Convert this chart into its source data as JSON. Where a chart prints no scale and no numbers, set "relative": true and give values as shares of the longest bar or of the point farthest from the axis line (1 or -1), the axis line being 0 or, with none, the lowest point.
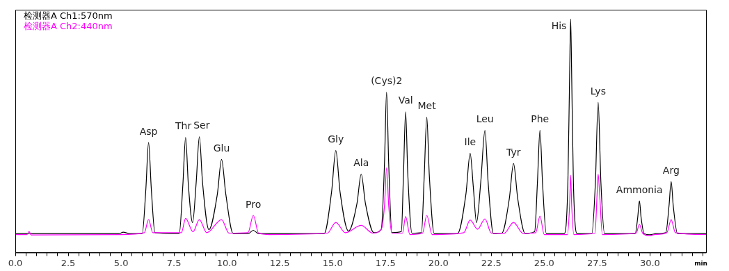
{
  "chart_data": {
    "type": "line",
    "relative": true,
    "xlabel": "min",
    "legend": "top left",
    "grid": false,
    "marker": "none",
    "line_style": "solid",
    "xlim": [
      0,
      32.65
    ],
    "xticks": [
      {
        "value": 0,
        "label": "0.0"
      },
      {
        "value": 0.5,
        "label": null
      },
      {
        "value": 1,
        "label": null
      },
      {
        "value": 1.5,
        "label": null
      },
      {
        "value": 2,
        "label": null
      },
      {
        "value": 2.5,
        "label": "2.5"
      },
      {
        "value": 3,
        "label": null
      },
      {
        "value": 3.5,
        "label": null
      },
      {
        "value": 4,
        "label": null
      },
      {
        "value": 4.5,
        "label": null
      },
      {
        "value": 5,
        "label": "5.0"
      },
      {
        "value": 5.5,
        "label": null
      },
      {
        "value": 6,
        "label": null
      },
      {
        "value": 6.5,
        "label": null
      },
      {
        "value": 7,
        "label": null
      },
      {
        "value": 7.5,
        "label": "7.5"
      },
      {
        "value": 8,
        "label": null
      },
      {
        "value": 8.5,
        "label": null
      },
      {
        "value": 9,
        "label": null
      },
      {
        "value": 9.5,
        "label": null
      },
      {
        "value": 10,
        "label": "10.0"
      },
      {
        "value": 10.5,
        "label": null
      },
      {
        "value": 11,
        "label": null
      },
      {
        "value": 11.5,
        "label": null
      },
      {
        "value": 12,
        "label": null
      },
      {
        "value": 12.5,
        "label": "12.5"
      },
      {
        "value": 13,
        "label": null
      },
      {
        "value": 13.5,
        "label": null
      },
      {
        "value": 14,
        "label": null
      },
      {
        "value": 14.5,
        "label": null
      },
      {
        "value": 15,
        "label": "15.0"
      },
      {
        "value": 15.5,
        "label": null
      },
      {
        "value": 16,
        "label": null
      },
      {
        "value": 16.5,
        "label": null
      },
      {
        "value": 17,
        "label": null
      },
      {
        "value": 17.5,
        "label": "17.5"
      },
      {
        "value": 18,
        "label": null
      },
      {
        "value": 18.5,
        "label": null
      },
      {
        "value": 19,
        "label": null
      },
      {
        "value": 19.5,
        "label": null
      },
      {
        "value": 20,
        "label": "20.0"
      },
      {
        "value": 20.5,
        "label": null
      },
      {
        "value": 21,
        "label": null
      },
      {
        "value": 21.5,
        "label": null
      },
      {
        "value": 22,
        "label": null
      },
      {
        "value": 22.5,
        "label": "22.5"
      },
      {
        "value": 23,
        "label": null
      },
      {
        "value": 23.5,
        "label": null
      },
      {
        "value": 24,
        "label": null
      },
      {
        "value": 24.5,
        "label": null
      },
      {
        "value": 25,
        "label": "25.0"
      },
      {
        "value": 25.5,
        "label": null
      },
      {
        "value": 26,
        "label": null
      },
      {
        "value": 26.5,
        "label": null
      },
      {
        "value": 27,
        "label": null
      },
      {
        "value": 27.5,
        "label": "27.5"
      },
      {
        "value": 28,
        "label": null
      },
      {
        "value": 28.5,
        "label": null
      },
      {
        "value": 29,
        "label": null
      },
      {
        "value": 29.5,
        "label": null
      },
      {
        "value": 30,
        "label": "30.0"
      },
      {
        "value": 30.5,
        "label": null
      },
      {
        "value": 31,
        "label": null
      },
      {
        "value": 31.5,
        "label": null
      },
      {
        "value": 32,
        "label": null
      },
      {
        "value": 32.5,
        "label": null
      }
    ],
    "series": [
      {
        "name": "检测器A Ch1:570nm",
        "color": "#000000",
        "x": [
          0,
          0.6,
          0.65,
          0.75,
          4.9,
          5.1,
          5.4,
          6.0,
          6.17,
          6.3,
          6.43,
          6.6,
          7.75,
          7.92,
          8.05,
          8.18,
          8.38,
          8.55,
          8.7,
          8.85,
          9.15,
          9.55,
          9.75,
          9.95,
          10.3,
          11.0,
          11.25,
          11.5,
          14.6,
          14.95,
          15.15,
          15.35,
          15.75,
          16.15,
          16.35,
          16.55,
          16.95,
          17.3,
          17.45,
          17.55,
          17.65,
          17.8,
          18.25,
          18.35,
          18.45,
          18.55,
          18.75,
          19.2,
          19.33,
          19.45,
          19.57,
          19.8,
          20.9,
          21.3,
          21.5,
          21.65,
          21.8,
          22.0,
          22.2,
          22.35,
          22.6,
          23.0,
          23.35,
          23.55,
          23.75,
          24.1,
          24.55,
          24.68,
          24.8,
          24.92,
          25.1,
          25.95,
          26.12,
          26.2,
          26.25,
          26.3,
          26.38,
          26.55,
          27.25,
          27.42,
          27.55,
          27.68,
          27.85,
          29.3,
          29.42,
          29.5,
          29.58,
          29.72,
          30.0,
          30.3,
          30.75,
          30.9,
          31.0,
          31.1,
          31.3,
          32.65
        ],
        "values": [
          0.081,
          0.081,
          0.083,
          0.081,
          0.081,
          0.087,
          0.081,
          0.081,
          0.27,
          0.471,
          0.27,
          0.085,
          0.081,
          0.29,
          0.493,
          0.29,
          0.128,
          0.3,
          0.496,
          0.3,
          0.098,
          0.25,
          0.399,
          0.25,
          0.081,
          0.081,
          0.095,
          0.081,
          0.081,
          0.26,
          0.437,
          0.26,
          0.092,
          0.21,
          0.336,
          0.21,
          0.085,
          0.1,
          0.38,
          0.688,
          0.38,
          0.085,
          0.09,
          0.34,
          0.603,
          0.34,
          0.083,
          0.085,
          0.33,
          0.58,
          0.33,
          0.081,
          0.081,
          0.25,
          0.425,
          0.28,
          0.128,
          0.3,
          0.523,
          0.3,
          0.081,
          0.083,
          0.23,
          0.381,
          0.23,
          0.081,
          0.09,
          0.3,
          0.524,
          0.3,
          0.081,
          0.081,
          0.3,
          0.75,
          1.0,
          0.75,
          0.3,
          0.081,
          0.081,
          0.3,
          0.644,
          0.3,
          0.081,
          0.081,
          0.15,
          0.221,
          0.15,
          0.081,
          0.076,
          0.081,
          0.085,
          0.2,
          0.304,
          0.2,
          0.081,
          0.081
        ]
      },
      {
        "name": "检测器A Ch2:440nm",
        "color": "#ff00ff",
        "x": [
          0,
          0.55,
          0.65,
          0.75,
          5.0,
          6.1,
          6.3,
          6.5,
          7.85,
          8.05,
          8.4,
          8.7,
          9.05,
          9.75,
          10.1,
          11.0,
          11.25,
          11.5,
          12.0,
          14.75,
          15.15,
          15.6,
          16.35,
          16.9,
          17.3,
          17.45,
          17.55,
          17.65,
          17.8,
          18.3,
          18.45,
          18.65,
          19.25,
          19.45,
          19.7,
          21.2,
          21.5,
          21.85,
          22.2,
          22.5,
          23.1,
          23.55,
          24.0,
          24.6,
          24.8,
          25.0,
          26.1,
          26.2,
          26.25,
          26.3,
          26.4,
          27.4,
          27.5,
          27.55,
          27.62,
          27.75,
          29.35,
          29.5,
          29.65,
          30.0,
          30.2,
          30.8,
          31.0,
          31.2,
          32.65
        ],
        "values": [
          0.077,
          0.077,
          0.09,
          0.075,
          0.077,
          0.085,
          0.141,
          0.085,
          0.085,
          0.146,
          0.089,
          0.141,
          0.085,
          0.141,
          0.083,
          0.085,
          0.159,
          0.083,
          0.077,
          0.083,
          0.129,
          0.085,
          0.116,
          0.083,
          0.1,
          0.2,
          0.363,
          0.2,
          0.083,
          0.083,
          0.154,
          0.077,
          0.083,
          0.159,
          0.077,
          0.085,
          0.139,
          0.1,
          0.144,
          0.083,
          0.082,
          0.129,
          0.082,
          0.085,
          0.156,
          0.077,
          0.077,
          0.2,
          0.331,
          0.2,
          0.077,
          0.083,
          0.25,
          0.336,
          0.25,
          0.077,
          0.083,
          0.121,
          0.083,
          0.072,
          0.077,
          0.085,
          0.141,
          0.085,
          0.077
        ]
      }
    ],
    "annotations": [
      {
        "text": "Asp",
        "x": 6.3,
        "y": 0.471
      },
      {
        "text": "Thr",
        "x": 8.05,
        "y": 0.493
      },
      {
        "text": "Ser",
        "x": 8.7,
        "y": 0.496
      },
      {
        "text": "Glu",
        "x": 9.75,
        "y": 0.399
      },
      {
        "text": "Pro",
        "x": 11.25,
        "y": 0.159
      },
      {
        "text": "Gly",
        "x": 15.15,
        "y": 0.437
      },
      {
        "text": "Ala",
        "x": 16.35,
        "y": 0.336
      },
      {
        "text": "(Cys)2",
        "x": 17.55,
        "y": 0.688
      },
      {
        "text": "Val",
        "x": 18.45,
        "y": 0.603
      },
      {
        "text": "Met",
        "x": 19.45,
        "y": 0.58
      },
      {
        "text": "Ile",
        "x": 21.5,
        "y": 0.425
      },
      {
        "text": "Leu",
        "x": 22.2,
        "y": 0.523
      },
      {
        "text": "Tyr",
        "x": 23.55,
        "y": 0.381
      },
      {
        "text": "Phe",
        "x": 24.8,
        "y": 0.524
      },
      {
        "text": "His",
        "x": 26.25,
        "y": 1.0
      },
      {
        "text": "Lys",
        "x": 27.55,
        "y": 0.644
      },
      {
        "text": "Ammonia",
        "x": 29.5,
        "y": 0.221
      },
      {
        "text": "Arg",
        "x": 31.0,
        "y": 0.304
      }
    ]
  }
}
